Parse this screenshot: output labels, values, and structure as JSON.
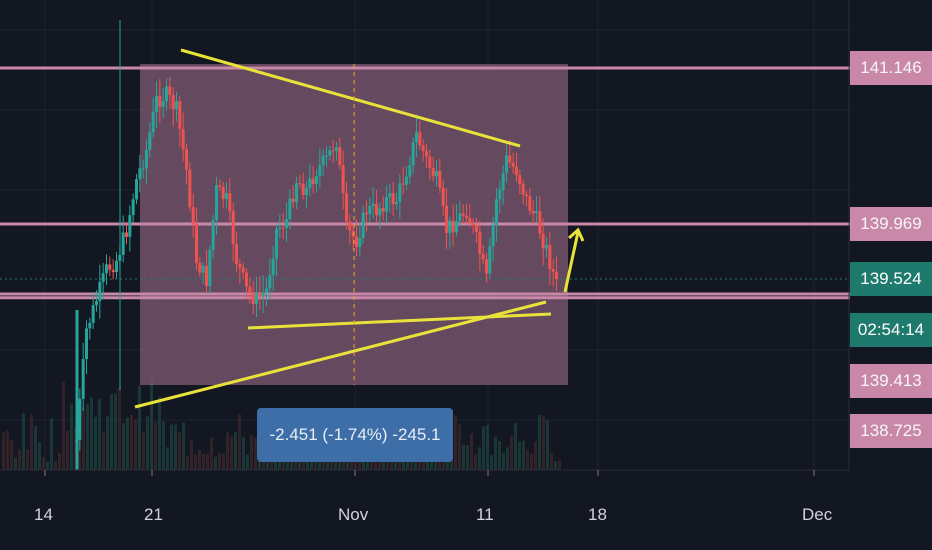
{
  "chart_data": {
    "type": "candlestick",
    "x_axis": {
      "ticks": [
        "14",
        "21",
        "Nov",
        "11",
        "18",
        "Dec"
      ]
    },
    "y_axis": {
      "ticks": [
        "141.146",
        "139.969",
        "139.524",
        "139.413",
        "138.725"
      ]
    },
    "price_levels": [
      {
        "value": 141.146,
        "label": "141.146",
        "color": "#c988a8"
      },
      {
        "value": 139.969,
        "label": "139.969",
        "color": "#c988a8"
      },
      {
        "value": 139.413,
        "label": "139.413",
        "color": "#c988a8"
      },
      {
        "value": 138.725,
        "label": "138.725",
        "color": "#c988a8"
      }
    ],
    "current_price": {
      "value": 139.524,
      "label": "139.524",
      "color": "#1f7a6e"
    },
    "countdown": "02:54:14",
    "measure_label": "-2.451 (-1.74%) -245.1",
    "colors": {
      "up": "#26a69a",
      "down": "#ef5350",
      "trendline": "#e8e23a",
      "range_fill": "#c988a8"
    }
  }
}
